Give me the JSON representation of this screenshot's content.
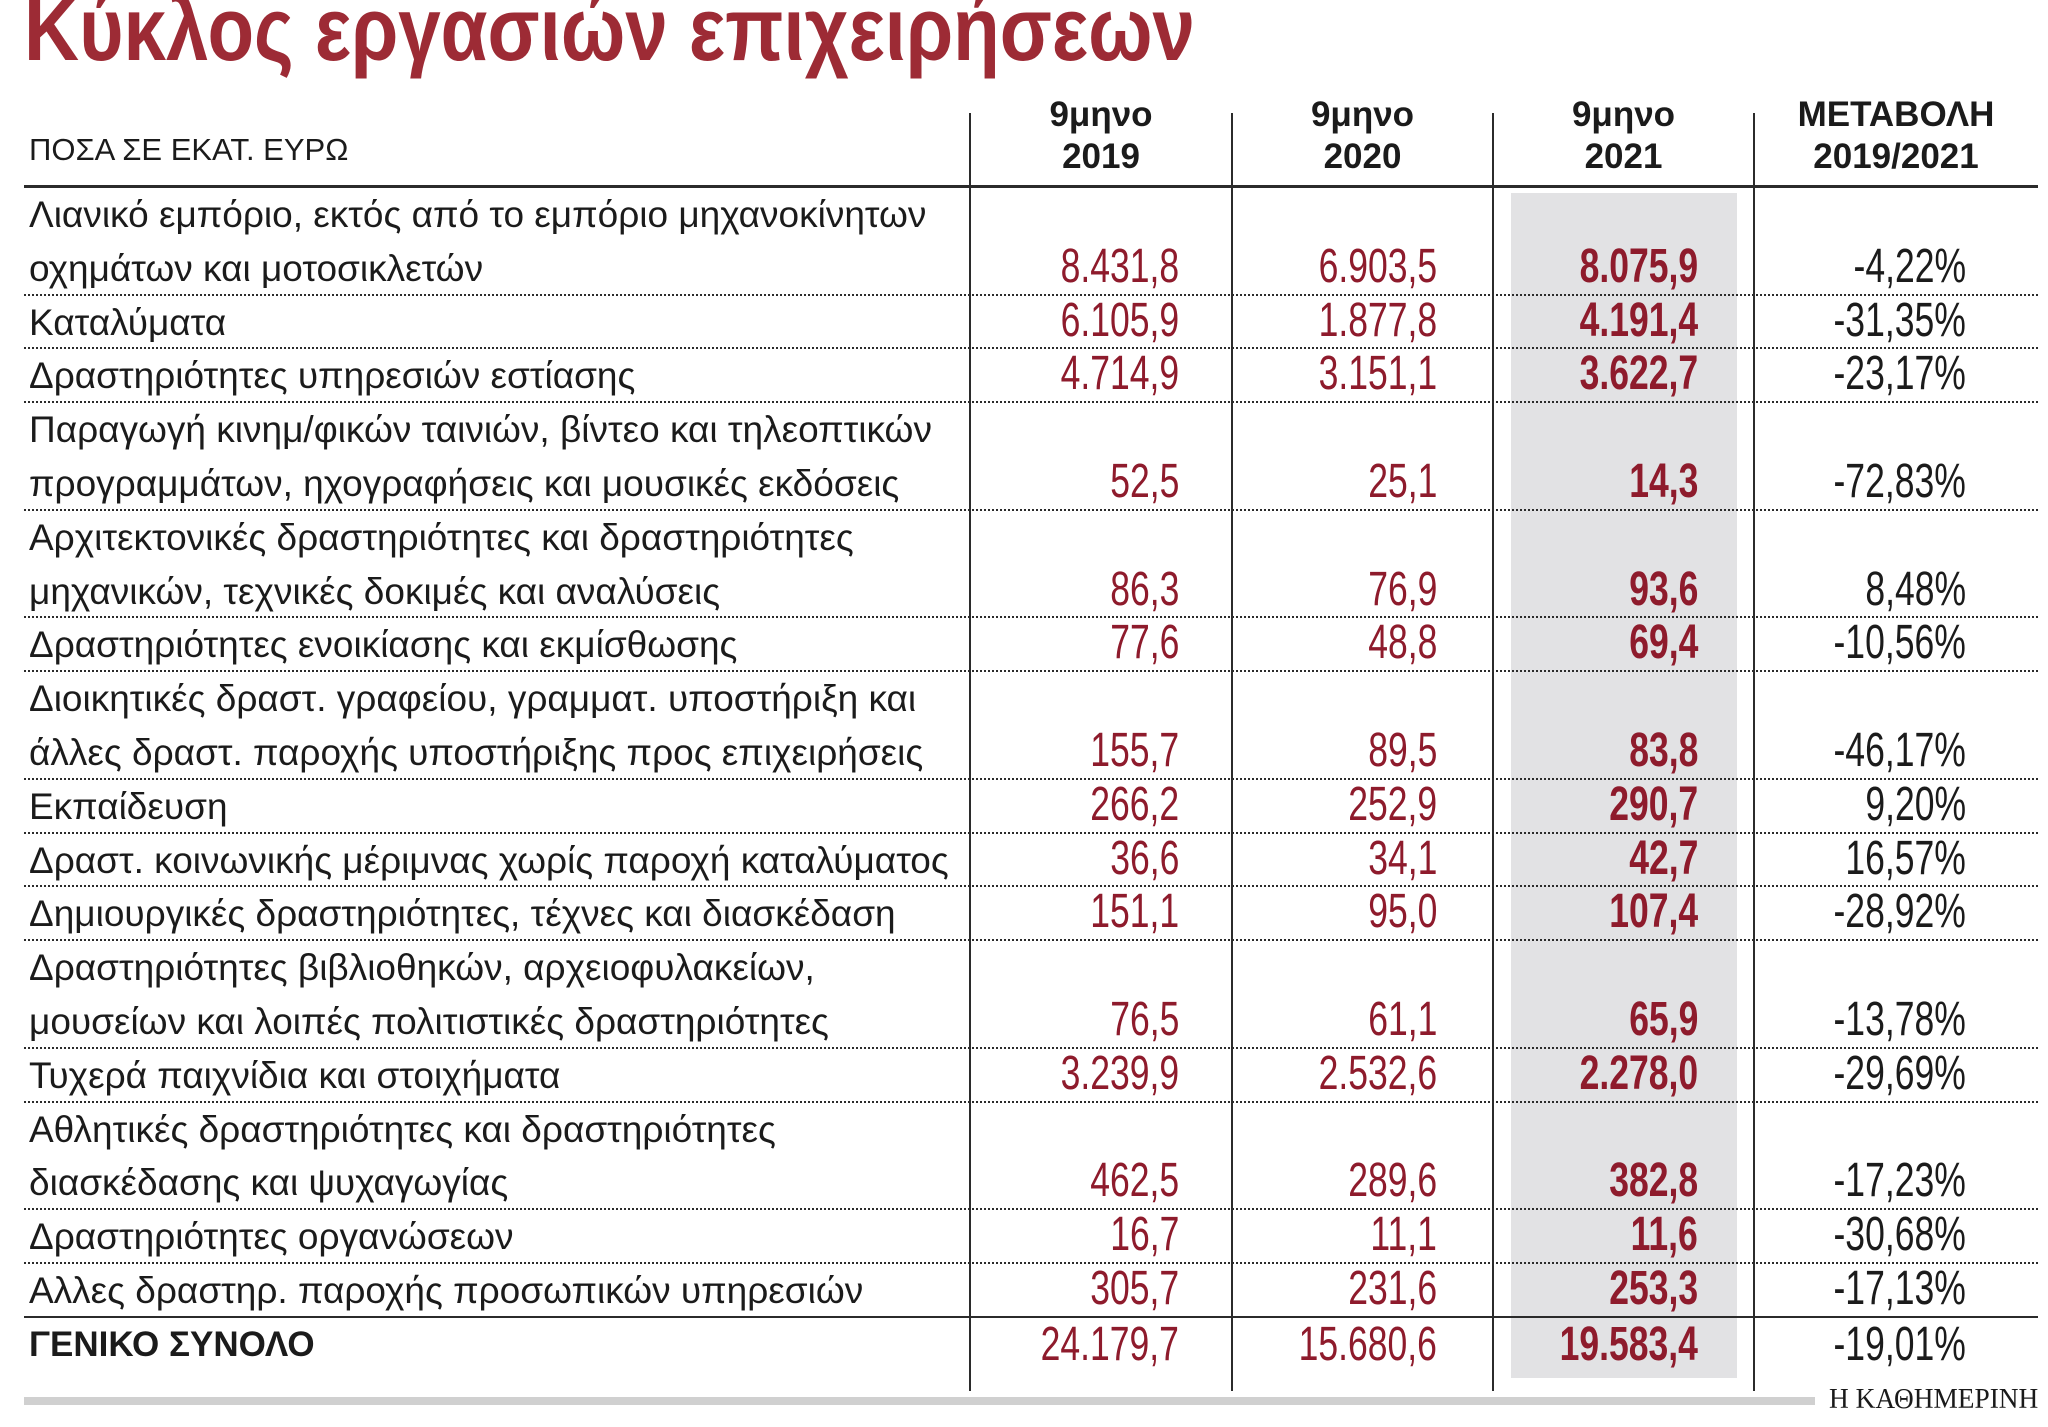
{
  "colors": {
    "title": "#9d2b35",
    "values": "#8e1b2c",
    "highlight": "#e2e2e4",
    "text": "#1b1b1b",
    "rule": "#2b2b2b",
    "bottom_bar": "#d0d0d0"
  },
  "chart_data": {
    "type": "table",
    "title": "Κύκλος εργασιών επιχειρήσεων",
    "unit_label": "ΠΟΣΑ ΣΕ ΕΚΑΤ. ΕΥΡΩ",
    "source": "Η ΚΑΘΗΜΕΡΙΝΗ",
    "highlighted_column": 2,
    "columns": [
      {
        "line1": "9μηνο",
        "line2": "2019"
      },
      {
        "line1": "9μηνο",
        "line2": "2020"
      },
      {
        "line1": "9μηνο",
        "line2": "2021"
      },
      {
        "line1": "ΜΕΤΑΒΟΛΗ",
        "line2": "2019/2021"
      }
    ],
    "rows": [
      {
        "label": [
          "Λιανικό εμπόριο, εκτός από το εμπόριο μηχανοκίνητων",
          "οχημάτων και μοτοσικλετών"
        ],
        "values": [
          "8.431,8",
          "6.903,5",
          "8.075,9",
          "-4,22%"
        ]
      },
      {
        "label": [
          "Καταλύματα"
        ],
        "values": [
          "6.105,9",
          "1.877,8",
          "4.191,4",
          "-31,35%"
        ]
      },
      {
        "label": [
          "Δραστηριότητες υπηρεσιών εστίασης"
        ],
        "values": [
          "4.714,9",
          "3.151,1",
          "3.622,7",
          "-23,17%"
        ]
      },
      {
        "label": [
          "Παραγωγή κινημ/φικών ταινιών, βίντεο και τηλεοπτικών",
          "προγραμμάτων, ηχογραφήσεις και μουσικές εκδόσεις"
        ],
        "values": [
          "52,5",
          "25,1",
          "14,3",
          "-72,83%"
        ]
      },
      {
        "label": [
          "Αρχιτεκτονικές δραστηριότητες και δραστηριότητες",
          "μηχανικών, τεχνικές δοκιμές και αναλύσεις"
        ],
        "values": [
          "86,3",
          "76,9",
          "93,6",
          "8,48%"
        ]
      },
      {
        "label": [
          "Δραστηριότητες ενοικίασης και εκμίσθωσης"
        ],
        "values": [
          "77,6",
          "48,8",
          "69,4",
          "-10,56%"
        ]
      },
      {
        "label": [
          "Διοικητικές δραστ. γραφείου, γραμματ. υποστήριξη και",
          "άλλες δραστ. παροχής υποστήριξης προς επιχειρήσεις"
        ],
        "values": [
          "155,7",
          "89,5",
          "83,8",
          "-46,17%"
        ]
      },
      {
        "label": [
          "Εκπαίδευση"
        ],
        "values": [
          "266,2",
          "252,9",
          "290,7",
          "9,20%"
        ]
      },
      {
        "label": [
          "Δραστ. κοινωνικής μέριμνας χωρίς παροχή καταλύματος"
        ],
        "values": [
          "36,6",
          "34,1",
          "42,7",
          "16,57%"
        ]
      },
      {
        "label": [
          "Δημιουργικές δραστηριότητες, τέχνες και διασκέδαση"
        ],
        "values": [
          "151,1",
          "95,0",
          "107,4",
          "-28,92%"
        ]
      },
      {
        "label": [
          "Δραστηριότητες βιβλιοθηκών, αρχειοφυλακείων,",
          "μουσείων και λοιπές πολιτιστικές δραστηριότητες"
        ],
        "values": [
          "76,5",
          "61,1",
          "65,9",
          "-13,78%"
        ]
      },
      {
        "label": [
          "Τυχερά παιχνίδια και στοιχήματα"
        ],
        "values": [
          "3.239,9",
          "2.532,6",
          "2.278,0",
          "-29,69%"
        ]
      },
      {
        "label": [
          "Αθλητικές δραστηριότητες και δραστηριότητες",
          "διασκέδασης και ψυχαγωγίας"
        ],
        "values": [
          "462,5",
          "289,6",
          "382,8",
          "-17,23%"
        ]
      },
      {
        "label": [
          "Δραστηριότητες οργανώσεων"
        ],
        "values": [
          "16,7",
          "11,1",
          "11,6",
          "-30,68%"
        ]
      },
      {
        "label": [
          "Αλλες δραστηρ. παροχής προσωπικών υπηρεσιών"
        ],
        "values": [
          "305,7",
          "231,6",
          "253,3",
          "-17,13%"
        ]
      }
    ],
    "total": {
      "label": [
        "ΓΕΝΙΚΟ ΣΥΝΟΛΟ"
      ],
      "values": [
        "24.179,7",
        "15.680,6",
        "19.583,4",
        "-19,01%"
      ]
    }
  }
}
